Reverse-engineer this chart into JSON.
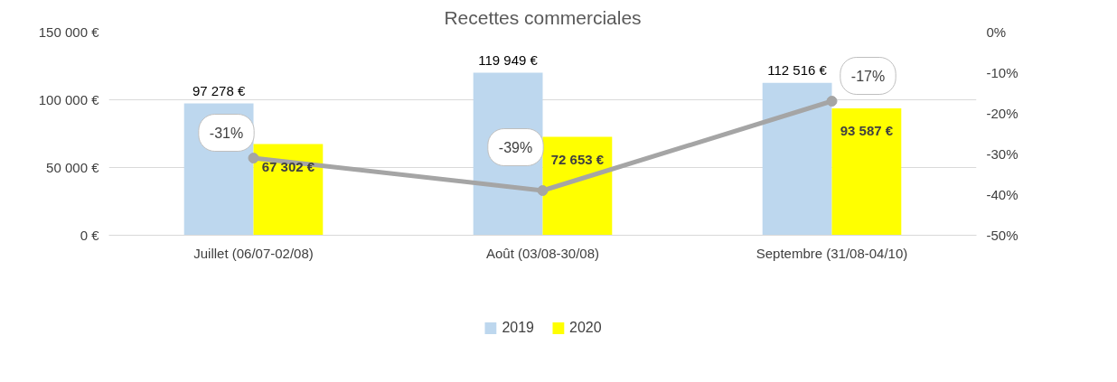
{
  "chart_data": {
    "type": "bar",
    "title": "Recettes commerciales",
    "categories": [
      "Juillet (06/07-02/08)",
      "Août (03/08-30/08)",
      "Septembre (31/08-04/10)"
    ],
    "series": [
      {
        "name": "2019",
        "color": "#bdd7ee",
        "values": [
          97278,
          119949,
          112516
        ],
        "value_labels": [
          "97 278 €",
          "119 949 €",
          "112 516 €"
        ]
      },
      {
        "name": "2020",
        "color": "#ffff00",
        "values": [
          67302,
          72653,
          93587
        ],
        "value_labels": [
          "67 302 €",
          "72 653 €",
          "93 587 €"
        ]
      },
      {
        "type": "line",
        "axis": "y2",
        "color": "#a5a5a5",
        "values": [
          -31,
          -39,
          -17
        ],
        "value_labels": [
          "-31%",
          "-39%",
          "-17%"
        ]
      }
    ],
    "ylim": [
      0,
      150000
    ],
    "yticks": [
      {
        "value": 0,
        "label": "0 €"
      },
      {
        "value": 50000,
        "label": "50 000 €"
      },
      {
        "value": 100000,
        "label": "100 000 €"
      },
      {
        "value": 150000,
        "label": "150 000 €"
      }
    ],
    "y2lim": [
      -50,
      0
    ],
    "y2ticks": [
      {
        "value": -50,
        "label": "-50%"
      },
      {
        "value": -40,
        "label": "-40%"
      },
      {
        "value": -30,
        "label": "-30%"
      },
      {
        "value": -20,
        "label": "-20%"
      },
      {
        "value": -10,
        "label": "-10%"
      },
      {
        "value": 0,
        "label": "0%"
      }
    ],
    "grid": "y",
    "legend": "bottom",
    "marker": "circle",
    "line_style": "solid"
  }
}
